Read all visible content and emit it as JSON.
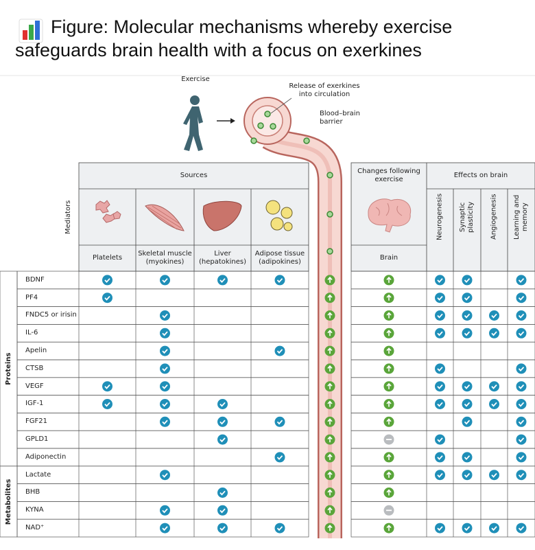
{
  "header": {
    "title": "Figure: Molecular mechanisms whereby exercise safeguards brain health with a focus on exerkines"
  },
  "diagram": {
    "exercise": "Exercise",
    "release": "Release of exerkines into circulation",
    "barrier": "Blood–brain barrier"
  },
  "table": {
    "mediators_label": "Mediators",
    "sources_label": "Sources",
    "sources": [
      "Platelets",
      "Skeletal muscle (myokines)",
      "Liver (hepatokines)",
      "Adipose tissue (adipokines)"
    ],
    "changes_label": "Changes following exercise",
    "changes_column": "Brain",
    "effects_label": "Effects on brain",
    "effects": [
      "Neurogenesis",
      "Synaptic plasticity",
      "Angiogenesis",
      "Learning and memory"
    ],
    "groups": [
      {
        "name": "Proteins",
        "rows": [
          {
            "name": "BDNF",
            "sources": [
              true,
              true,
              true,
              true
            ],
            "change": "up",
            "effects": [
              true,
              true,
              false,
              true
            ]
          },
          {
            "name": "PF4",
            "sources": [
              true,
              false,
              false,
              false
            ],
            "change": "up",
            "effects": [
              true,
              true,
              false,
              true
            ]
          },
          {
            "name": "FNDC5 or irisin",
            "sources": [
              false,
              true,
              false,
              false
            ],
            "change": "up",
            "effects": [
              true,
              true,
              true,
              true
            ]
          },
          {
            "name": "IL-6",
            "sources": [
              false,
              true,
              false,
              false
            ],
            "change": "up",
            "effects": [
              true,
              true,
              true,
              true
            ]
          },
          {
            "name": "Apelin",
            "sources": [
              false,
              true,
              false,
              true
            ],
            "change": "up",
            "effects": [
              false,
              false,
              false,
              false
            ]
          },
          {
            "name": "CTSB",
            "sources": [
              false,
              true,
              false,
              false
            ],
            "change": "up",
            "effects": [
              true,
              false,
              false,
              true
            ]
          },
          {
            "name": "VEGF",
            "sources": [
              true,
              true,
              false,
              false
            ],
            "change": "up",
            "effects": [
              true,
              true,
              true,
              true
            ]
          },
          {
            "name": "IGF-1",
            "sources": [
              true,
              true,
              true,
              false
            ],
            "change": "up",
            "effects": [
              true,
              true,
              true,
              true
            ]
          },
          {
            "name": "FGF21",
            "sources": [
              false,
              true,
              true,
              true
            ],
            "change": "up",
            "effects": [
              false,
              true,
              false,
              true
            ]
          },
          {
            "name": "GPLD1",
            "sources": [
              false,
              false,
              true,
              false
            ],
            "change": "none",
            "effects": [
              true,
              false,
              false,
              true
            ]
          },
          {
            "name": "Adiponectin",
            "sources": [
              false,
              false,
              false,
              true
            ],
            "change": "up",
            "effects": [
              true,
              true,
              false,
              true
            ]
          }
        ]
      },
      {
        "name": "Metabolites",
        "rows": [
          {
            "name": "Lactate",
            "sources": [
              false,
              true,
              false,
              false
            ],
            "change": "up",
            "effects": [
              true,
              true,
              true,
              true
            ]
          },
          {
            "name": "BHB",
            "sources": [
              false,
              false,
              true,
              false
            ],
            "change": "up",
            "effects": [
              false,
              false,
              false,
              false
            ]
          },
          {
            "name": "KYNA",
            "sources": [
              false,
              true,
              true,
              false
            ],
            "change": "none",
            "effects": [
              false,
              false,
              false,
              false
            ]
          },
          {
            "name": "NAD⁺",
            "sources": [
              false,
              true,
              true,
              true
            ],
            "change": "up",
            "effects": [
              true,
              true,
              true,
              true
            ]
          }
        ]
      }
    ]
  }
}
